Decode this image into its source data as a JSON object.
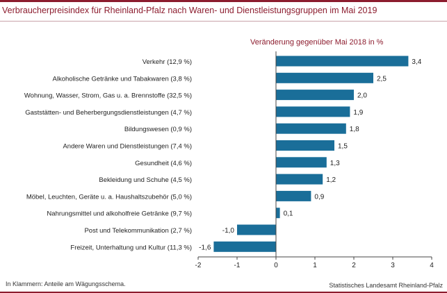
{
  "page": {
    "title": "Verbraucherpreisindex für Rheinland-Pfalz nach Waren- und Dienstleistungsgruppen im Mai 2019",
    "footnote": "In Klammern: Anteile am Wägungsschema.",
    "source": "Statistisches Landesamt Rheinland-Pfalz"
  },
  "chart_data": {
    "type": "bar",
    "orientation": "horizontal",
    "title": "Verbraucherpreisindex für Rheinland-Pfalz nach Waren- und Dienstleistungsgruppen im Mai 2019",
    "subtitle": "Veränderung gegenüber Mai 2018 in %",
    "categories": [
      "Verkehr (12,9 %)",
      "Alkoholische Getränke und Tabakwaren (3,8 %)",
      "Wohnung, Wasser, Strom, Gas u. a. Brennstoffe (32,5 %)",
      "Gaststätten- und Beherbergungsdienstleistungen (4,7 %)",
      "Bildungswesen (0,9 %)",
      "Andere Waren und Dienstleistungen (7,4 %)",
      "Gesundheit (4,6 %)",
      "Bekleidung und Schuhe (4,5 %)",
      "Möbel, Leuchten, Geräte u. a. Haushaltszubehör (5,0 %)",
      "Nahrungsmittel und alkoholfreie Getränke (9,7 %)",
      "Post und Telekommunikation (2,7 %)",
      "Freizeit, Unterhaltung und Kultur (11,3 %)"
    ],
    "values": [
      3.4,
      2.5,
      2.0,
      1.9,
      1.8,
      1.5,
      1.3,
      1.2,
      0.9,
      0.1,
      -1.0,
      -1.6
    ],
    "value_labels": [
      "3,4",
      "2,5",
      "2,0",
      "1,9",
      "1,8",
      "1,5",
      "1,3",
      "1,2",
      "0,9",
      "0,1",
      "-1,0",
      "-1,6"
    ],
    "xlim": [
      -2,
      4
    ],
    "xticks": [
      -2,
      -1,
      0,
      1,
      2,
      3,
      4
    ],
    "xtick_labels": [
      "-2",
      "-1",
      "0",
      "1",
      "2",
      "3",
      "4"
    ],
    "bar_color": "#1a6e99",
    "grid": false
  }
}
